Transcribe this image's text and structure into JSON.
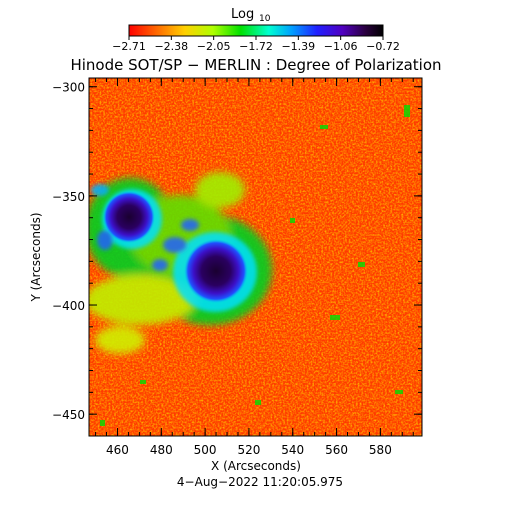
{
  "colorbar": {
    "label": "Log",
    "label_subscript": "10",
    "tick_labels": [
      "−2.71",
      "−2.38",
      "−2.05",
      "−1.72",
      "−1.39",
      "−1.06",
      "−0.72"
    ],
    "range": [
      -2.71,
      -0.72
    ]
  },
  "title": "Hinode SOT/SP − MERLIN : Degree of Polarization",
  "ylabel": "Y (Arcseconds)",
  "xlabel": "X (Arcseconds)",
  "timestamp": "4−Aug−2022 11:20:05.975",
  "x_axis": {
    "range": [
      447,
      599
    ],
    "ticks": [
      460,
      480,
      500,
      520,
      540,
      560,
      580
    ],
    "tick_labels": [
      "460",
      "480",
      "500",
      "520",
      "540",
      "560",
      "580"
    ]
  },
  "y_axis": {
    "range": [
      -460,
      -296
    ],
    "ticks": [
      -300,
      -350,
      -400,
      -450
    ],
    "tick_labels": [
      "−300",
      "−350",
      "−400",
      "−450"
    ]
  },
  "image_features": [
    {
      "name": "sunspot-umbra-small",
      "x": 470,
      "y": -363,
      "r": 10
    },
    {
      "name": "sunspot-umbra-large",
      "x": 507,
      "y": -387,
      "r": 13
    }
  ],
  "colors": {
    "scale": [
      "#ff0000",
      "#ff7f00",
      "#ffff00",
      "#7fff00",
      "#00e000",
      "#00e0ff",
      "#0080ff",
      "#2020ff",
      "#4000c0",
      "#2a0040",
      "#000000"
    ]
  }
}
